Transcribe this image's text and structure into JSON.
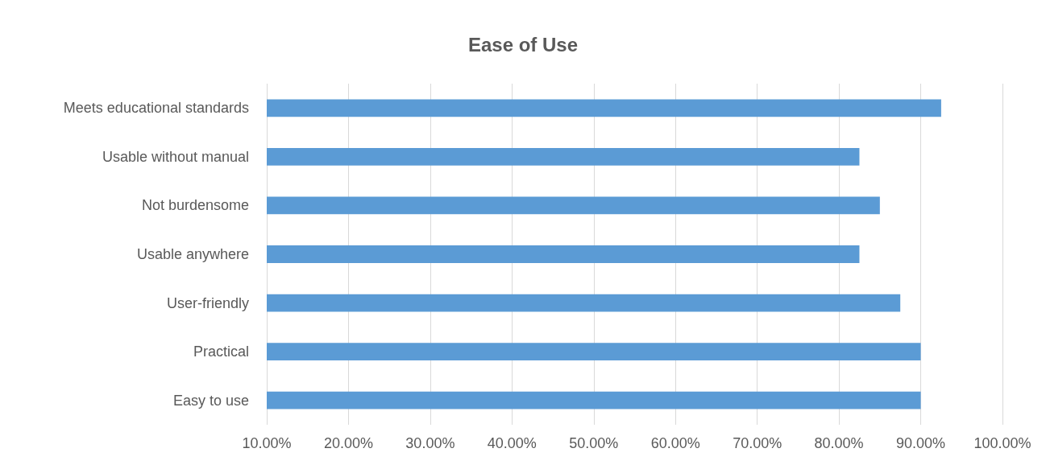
{
  "chart_data": {
    "type": "bar",
    "orientation": "horizontal",
    "title": "Ease of Use",
    "categories": [
      "Meets educational standards",
      "Usable without manual",
      "Not burdensome",
      "Usable anywhere",
      "User-friendly",
      "Practical",
      "Easy to use"
    ],
    "values": [
      92.5,
      82.5,
      85,
      82.5,
      87.5,
      90,
      90
    ],
    "color": "#5b9bd5",
    "xlim": [
      10,
      100
    ],
    "xticks": [
      {
        "value": 10,
        "label": "10.00%"
      },
      {
        "value": 20,
        "label": "20.00%"
      },
      {
        "value": 30,
        "label": "30.00%"
      },
      {
        "value": 40,
        "label": "40.00%"
      },
      {
        "value": 50,
        "label": "50.00%"
      },
      {
        "value": 60,
        "label": "60.00%"
      },
      {
        "value": 70,
        "label": "70.00%"
      },
      {
        "value": 80,
        "label": "80.00%"
      },
      {
        "value": 90,
        "label": "90.00%"
      },
      {
        "value": 100,
        "label": "100.00%"
      }
    ],
    "grid": "x"
  }
}
